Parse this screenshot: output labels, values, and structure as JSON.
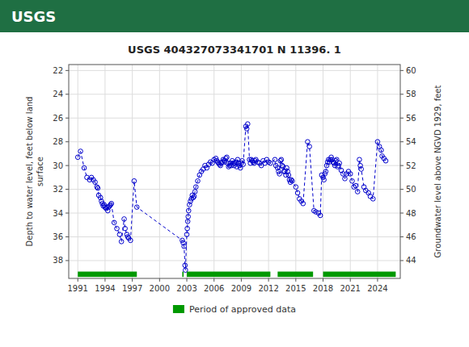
{
  "chart_data": {
    "type": "line",
    "title": "USGS 404327073341701 N 11396. 1",
    "annotations": [
      {
        "text": "USGS"
      }
    ],
    "ylabel": "Depth to water level, feet below land\nsurface",
    "y2label": "Groundwater level above NGVD 1929, feet",
    "xlim": [
      1990.0,
      2026.5
    ],
    "xticks": [
      1991,
      1994,
      1997,
      2000,
      2003,
      2006,
      2009,
      2012,
      2015,
      2018,
      2021,
      2024
    ],
    "ylim": [
      39.5,
      21.5
    ],
    "yticks": [
      22,
      24,
      26,
      28,
      30,
      32,
      34,
      36,
      38
    ],
    "y2lim": [
      42.5,
      60.5
    ],
    "y2ticks": [
      60,
      58,
      56,
      54,
      52,
      50,
      48,
      46,
      44
    ],
    "grid": true,
    "legend": "bottom",
    "x": [
      1991.0,
      1991.3,
      1991.7,
      1992.0,
      1992.3,
      1992.5,
      1992.7,
      1992.9,
      1993.1,
      1993.2,
      1993.3,
      1993.5,
      1993.6,
      1993.7,
      1993.8,
      1993.9,
      1994.0,
      1994.1,
      1994.2,
      1994.3,
      1994.4,
      1994.5,
      1994.6,
      1994.7,
      1995.0,
      1995.3,
      1995.6,
      1995.8,
      1996.1,
      1996.2,
      1996.4,
      1996.5,
      1996.6,
      1996.8,
      1997.2,
      1997.5,
      2002.5,
      2002.6,
      2002.7,
      2002.8,
      2002.85,
      2003.0,
      2003.05,
      2003.1,
      2003.15,
      2003.2,
      2003.3,
      2003.4,
      2003.5,
      2003.6,
      2003.7,
      2003.8,
      2003.9,
      2004.0,
      2004.2,
      2004.4,
      2004.6,
      2004.8,
      2005.0,
      2005.2,
      2005.4,
      2005.6,
      2005.8,
      2006.0,
      2006.2,
      2006.3,
      2006.4,
      2006.5,
      2006.6,
      2006.7,
      2006.8,
      2006.9,
      2007.0,
      2007.1,
      2007.2,
      2007.3,
      2007.4,
      2007.5,
      2007.6,
      2007.7,
      2007.8,
      2007.9,
      2008.0,
      2008.1,
      2008.2,
      2008.3,
      2008.4,
      2008.5,
      2008.6,
      2008.7,
      2008.8,
      2008.9,
      2009.0,
      2009.1,
      2009.2,
      2009.5,
      2009.6,
      2009.7,
      2009.9,
      2010.0,
      2010.1,
      2010.2,
      2010.3,
      2010.4,
      2010.5,
      2010.6,
      2010.8,
      2011.0,
      2011.2,
      2011.4,
      2011.6,
      2011.8,
      2012.0,
      2012.2,
      2012.7,
      2012.8,
      2013.0,
      2013.1,
      2013.2,
      2013.3,
      2013.4,
      2013.5,
      2013.6,
      2013.7,
      2013.8,
      2013.9,
      2014.0,
      2014.1,
      2014.2,
      2014.3,
      2014.4,
      2014.5,
      2014.6,
      2015.0,
      2015.2,
      2015.4,
      2015.6,
      2015.8,
      2016.3,
      2016.5,
      2017.0,
      2017.2,
      2017.5,
      2017.7,
      2017.85,
      2018.0,
      2018.1,
      2018.2,
      2018.3,
      2018.4,
      2018.5,
      2018.6,
      2018.7,
      2018.8,
      2018.9,
      2019.0,
      2019.1,
      2019.2,
      2019.3,
      2019.4,
      2019.5,
      2019.6,
      2019.7,
      2019.8,
      2020.0,
      2020.2,
      2020.4,
      2020.6,
      2020.8,
      2021.0,
      2021.2,
      2021.4,
      2021.6,
      2021.8,
      2022.0,
      2022.1,
      2022.2,
      2022.5,
      2022.7,
      2023.0,
      2023.2,
      2023.5,
      2024.0,
      2024.2,
      2024.4,
      2024.5,
      2024.7,
      2024.9
    ],
    "series": [
      {
        "type": "line",
        "color": "#0000cc",
        "marker": "circle",
        "line_style": "dashed",
        "values": [
          29.3,
          28.8,
          30.2,
          31.0,
          31.2,
          31.0,
          31.2,
          31.4,
          31.8,
          31.9,
          32.5,
          32.7,
          33.0,
          33.2,
          33.4,
          33.3,
          33.5,
          33.6,
          33.5,
          33.8,
          33.5,
          33.4,
          33.3,
          33.2,
          34.8,
          35.3,
          35.8,
          36.4,
          34.5,
          35.3,
          35.8,
          36.0,
          36.1,
          36.3,
          31.3,
          33.5,
          36.3,
          36.5,
          36.8,
          38.4,
          38.8,
          35.8,
          35.3,
          34.7,
          34.3,
          33.8,
          33.3,
          33.0,
          32.8,
          32.5,
          32.7,
          32.6,
          32.2,
          31.8,
          31.3,
          30.8,
          30.5,
          30.3,
          30.0,
          30.2,
          29.9,
          29.7,
          29.8,
          29.5,
          29.4,
          29.6,
          29.7,
          29.8,
          29.9,
          30.0,
          29.8,
          29.7,
          29.5,
          29.6,
          29.7,
          29.4,
          29.3,
          29.8,
          30.1,
          30.0,
          29.8,
          30.0,
          29.6,
          29.8,
          30.0,
          29.8,
          29.7,
          30.1,
          29.5,
          29.8,
          30.0,
          30.2,
          29.8,
          29.6,
          29.9,
          26.7,
          26.9,
          26.5,
          29.5,
          29.8,
          29.5,
          29.6,
          29.7,
          29.8,
          29.6,
          29.5,
          29.7,
          29.8,
          30.0,
          29.6,
          29.8,
          29.5,
          29.7,
          29.8,
          29.5,
          30.0,
          30.2,
          30.5,
          30.7,
          29.6,
          29.5,
          30.0,
          30.1,
          30.5,
          30.5,
          30.8,
          30.2,
          30.5,
          30.8,
          31.2,
          31.4,
          31.2,
          31.3,
          31.8,
          32.3,
          32.8,
          33.0,
          33.2,
          28.0,
          28.4,
          33.8,
          33.9,
          34.0,
          34.2,
          30.8,
          31.0,
          31.2,
          30.7,
          30.5,
          30.0,
          29.7,
          29.5,
          29.7,
          29.5,
          29.3,
          29.5,
          29.7,
          29.8,
          30.0,
          29.6,
          29.5,
          30.1,
          30.0,
          29.8,
          30.4,
          30.7,
          31.1,
          30.7,
          30.5,
          30.7,
          31.3,
          31.8,
          31.7,
          32.2,
          29.5,
          30.0,
          30.3,
          31.8,
          32.1,
          32.3,
          32.6,
          32.8,
          28.0,
          28.4,
          28.7,
          29.2,
          29.4,
          29.6
        ]
      },
      {
        "type": "range",
        "name": "Period of approved data",
        "color": "#009900",
        "ranges": [
          [
            1991.0,
            1997.5
          ],
          [
            2002.5,
            2002.65
          ],
          [
            2003.0,
            2012.2
          ],
          [
            2013.0,
            2016.9
          ],
          [
            2018.0,
            2026.0
          ]
        ],
        "y": 39.15,
        "height": 0.45
      }
    ]
  }
}
